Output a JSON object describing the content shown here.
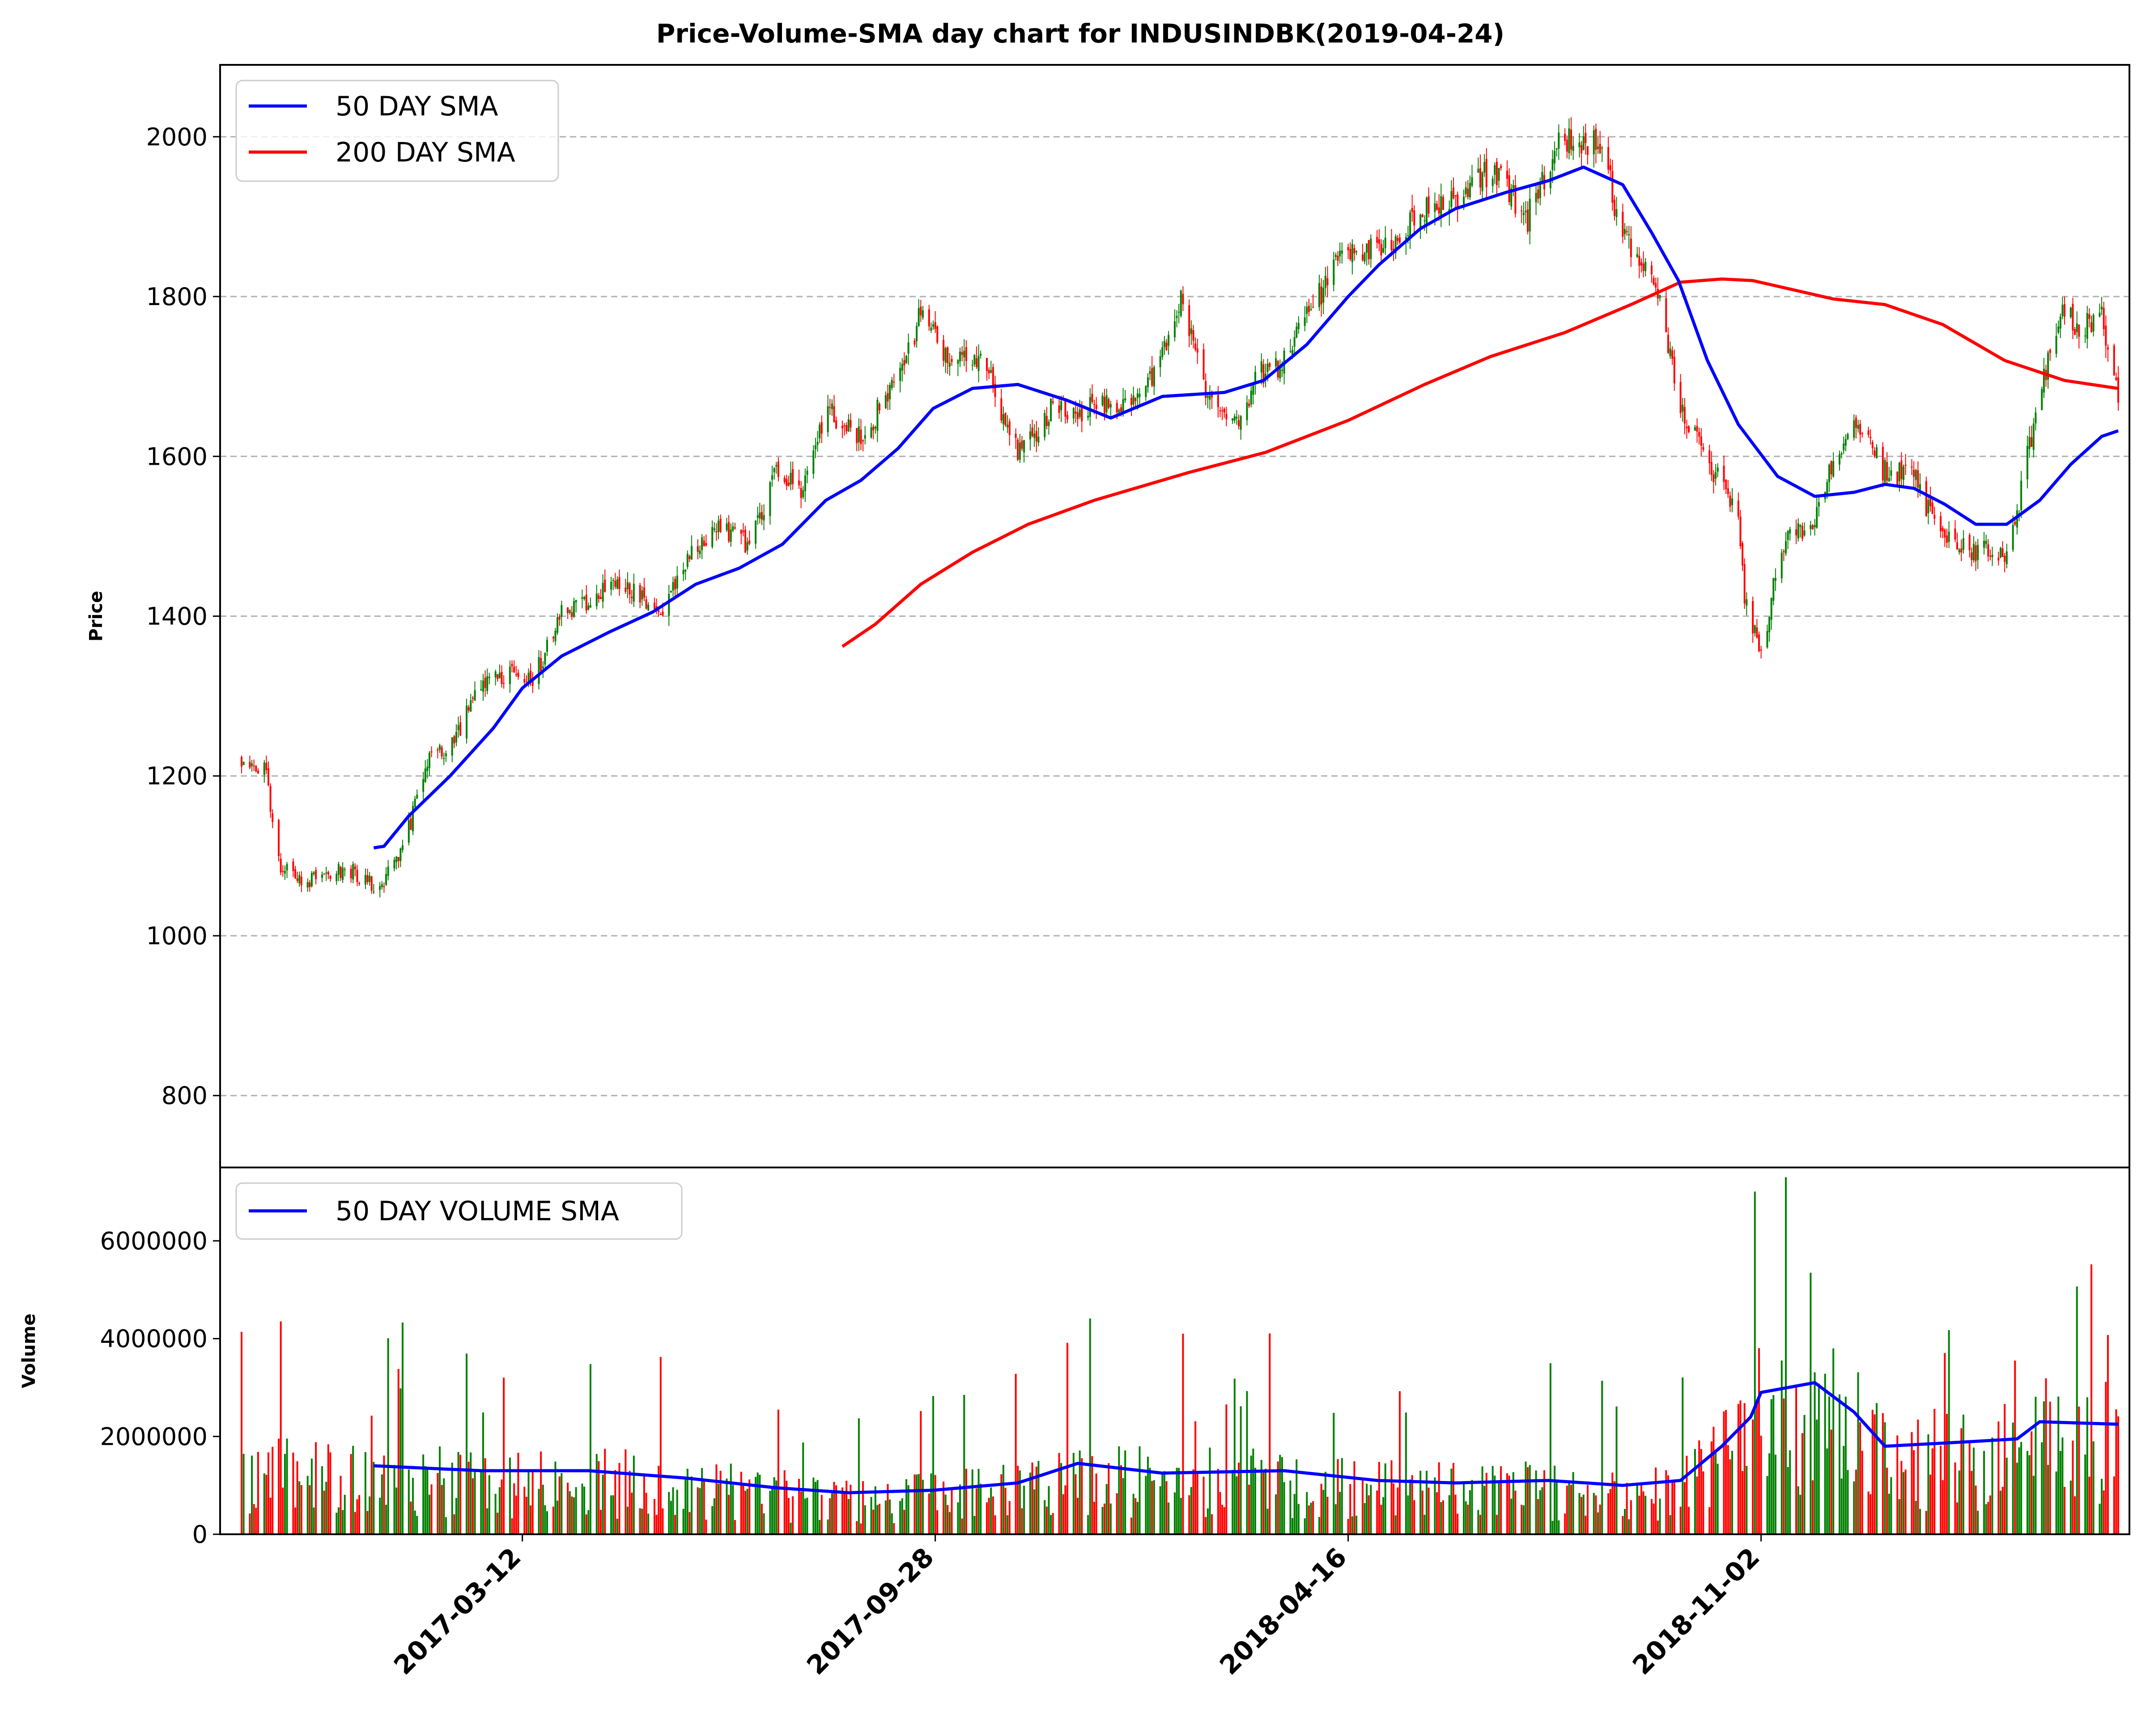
{
  "chart_data": {
    "type": "candlestick",
    "title": "Price-Volume-SMA day chart for INDUSINDBK(2019-04-24)",
    "colors": {
      "up": "#008000",
      "down": "#ff0000",
      "sma50": "#0000ff",
      "sma200": "#ff0000",
      "grid": "#b0b0b0"
    },
    "x_range": [
      "2016-10-27",
      "2019-04-24"
    ],
    "x_ticks": [
      "2017-03-12",
      "2017-09-28",
      "2018-04-16",
      "2018-11-02"
    ],
    "price_panel": {
      "ylabel": "Price",
      "ylim": [
        710,
        2090
      ],
      "yticks": [
        800,
        1000,
        1200,
        1400,
        1600,
        1800,
        2000
      ],
      "grid": true,
      "legend": {
        "placement": "top-left",
        "entries": [
          "50 DAY SMA",
          "200 DAY SMA"
        ]
      },
      "close_anchors": [
        [
          "2016-10-27",
          1222
        ],
        [
          "2016-11-08",
          1205
        ],
        [
          "2016-11-14",
          1090
        ],
        [
          "2016-11-25",
          1065
        ],
        [
          "2016-12-16",
          1085
        ],
        [
          "2017-01-02",
          1060
        ],
        [
          "2017-01-13",
          1105
        ],
        [
          "2017-01-25",
          1220
        ],
        [
          "2017-02-06",
          1240
        ],
        [
          "2017-02-20",
          1320
        ],
        [
          "2017-03-06",
          1330
        ],
        [
          "2017-03-17",
          1320
        ],
        [
          "2017-03-31",
          1400
        ],
        [
          "2017-04-13",
          1420
        ],
        [
          "2017-05-01",
          1440
        ],
        [
          "2017-05-18",
          1400
        ],
        [
          "2017-06-01",
          1480
        ],
        [
          "2017-06-13",
          1510
        ],
        [
          "2017-07-01",
          1490
        ],
        [
          "2017-07-13",
          1580
        ],
        [
          "2017-07-25",
          1560
        ],
        [
          "2017-08-07",
          1660
        ],
        [
          "2017-08-23",
          1620
        ],
        [
          "2017-09-10",
          1700
        ],
        [
          "2017-09-23",
          1790
        ],
        [
          "2017-10-03",
          1720
        ],
        [
          "2017-10-16",
          1730
        ],
        [
          "2017-10-26",
          1690
        ],
        [
          "2017-11-07",
          1600
        ],
        [
          "2017-11-24",
          1660
        ],
        [
          "2017-12-15",
          1660
        ],
        [
          "2018-01-03",
          1660
        ],
        [
          "2018-01-16",
          1720
        ],
        [
          "2018-01-26",
          1800
        ],
        [
          "2018-02-08",
          1660
        ],
        [
          "2018-02-20",
          1640
        ],
        [
          "2018-03-03",
          1700
        ],
        [
          "2018-03-16",
          1720
        ],
        [
          "2018-03-29",
          1780
        ],
        [
          "2018-04-12",
          1850
        ],
        [
          "2018-04-30",
          1860
        ],
        [
          "2018-05-20",
          1900
        ],
        [
          "2018-06-04",
          1920
        ],
        [
          "2018-06-24",
          1960
        ],
        [
          "2018-07-12",
          1900
        ],
        [
          "2018-07-27",
          1990
        ],
        [
          "2018-08-05",
          2000
        ],
        [
          "2018-08-17",
          1990
        ],
        [
          "2018-08-27",
          1870
        ],
        [
          "2018-09-10",
          1840
        ],
        [
          "2018-09-24",
          1660
        ],
        [
          "2018-10-05",
          1600
        ],
        [
          "2018-10-21",
          1540
        ],
        [
          "2018-10-25",
          1420
        ],
        [
          "2018-11-02",
          1350
        ],
        [
          "2018-11-12",
          1490
        ],
        [
          "2018-11-27",
          1520
        ],
        [
          "2018-12-07",
          1600
        ],
        [
          "2018-12-19",
          1640
        ],
        [
          "2019-01-01",
          1580
        ],
        [
          "2019-01-14",
          1580
        ],
        [
          "2019-01-28",
          1500
        ],
        [
          "2019-02-15",
          1480
        ],
        [
          "2019-02-28",
          1480
        ],
        [
          "2019-03-06",
          1530
        ],
        [
          "2019-03-17",
          1680
        ],
        [
          "2019-03-27",
          1780
        ],
        [
          "2019-04-08",
          1760
        ],
        [
          "2019-04-16",
          1780
        ],
        [
          "2019-04-24",
          1670
        ]
      ],
      "sma50": [
        [
          "2016-12-30",
          1110
        ],
        [
          "2017-01-04",
          1112
        ],
        [
          "2017-01-16",
          1150
        ],
        [
          "2017-02-05",
          1200
        ],
        [
          "2017-02-26",
          1260
        ],
        [
          "2017-03-12",
          1310
        ],
        [
          "2017-03-31",
          1350
        ],
        [
          "2017-04-23",
          1380
        ],
        [
          "2017-05-14",
          1405
        ],
        [
          "2017-06-04",
          1440
        ],
        [
          "2017-06-25",
          1460
        ],
        [
          "2017-07-16",
          1490
        ],
        [
          "2017-08-06",
          1545
        ],
        [
          "2017-08-23",
          1570
        ],
        [
          "2017-09-10",
          1610
        ],
        [
          "2017-09-27",
          1660
        ],
        [
          "2017-10-16",
          1685
        ],
        [
          "2017-11-07",
          1690
        ],
        [
          "2017-12-01",
          1670
        ],
        [
          "2017-12-22",
          1648
        ],
        [
          "2018-01-16",
          1675
        ],
        [
          "2018-02-15",
          1680
        ],
        [
          "2018-03-06",
          1695
        ],
        [
          "2018-03-27",
          1740
        ],
        [
          "2018-04-16",
          1800
        ],
        [
          "2018-05-01",
          1840
        ],
        [
          "2018-05-21",
          1885
        ],
        [
          "2018-06-07",
          1910
        ],
        [
          "2018-07-01",
          1930
        ],
        [
          "2018-07-22",
          1945
        ],
        [
          "2018-08-08",
          1962
        ],
        [
          "2018-08-27",
          1940
        ],
        [
          "2018-09-10",
          1880
        ],
        [
          "2018-09-23",
          1820
        ],
        [
          "2018-10-07",
          1720
        ],
        [
          "2018-10-22",
          1640
        ],
        [
          "2018-11-10",
          1575
        ],
        [
          "2018-11-28",
          1550
        ],
        [
          "2018-12-17",
          1555
        ],
        [
          "2019-01-01",
          1565
        ],
        [
          "2019-01-15",
          1560
        ],
        [
          "2019-01-30",
          1540
        ],
        [
          "2019-02-14",
          1515
        ],
        [
          "2019-03-01",
          1515
        ],
        [
          "2019-03-17",
          1545
        ],
        [
          "2019-04-01",
          1590
        ],
        [
          "2019-04-16",
          1625
        ],
        [
          "2019-04-24",
          1632
        ]
      ],
      "sma200": [
        [
          "2017-08-14",
          1362
        ],
        [
          "2017-08-30",
          1390
        ],
        [
          "2017-09-21",
          1440
        ],
        [
          "2017-10-16",
          1480
        ],
        [
          "2017-11-12",
          1515
        ],
        [
          "2017-12-14",
          1545
        ],
        [
          "2018-01-29",
          1580
        ],
        [
          "2018-03-07",
          1605
        ],
        [
          "2018-04-16",
          1645
        ],
        [
          "2018-05-23",
          1690
        ],
        [
          "2018-06-24",
          1725
        ],
        [
          "2018-07-30",
          1755
        ],
        [
          "2018-08-31",
          1790
        ],
        [
          "2018-09-24",
          1818
        ],
        [
          "2018-10-14",
          1822
        ],
        [
          "2018-10-29",
          1820
        ],
        [
          "2018-12-07",
          1797
        ],
        [
          "2019-01-01",
          1790
        ],
        [
          "2019-01-29",
          1765
        ],
        [
          "2019-02-28",
          1720
        ],
        [
          "2019-03-29",
          1695
        ],
        [
          "2019-04-24",
          1685
        ]
      ]
    },
    "volume_panel": {
      "ylabel": "Volume",
      "ylim": [
        0,
        7500000
      ],
      "yticks": [
        0,
        2000000,
        4000000,
        6000000
      ],
      "legend": {
        "placement": "top-left",
        "entries": [
          "50 DAY VOLUME SMA"
        ]
      },
      "volume_sma50": [
        [
          "2016-12-30",
          1400000
        ],
        [
          "2017-02-20",
          1300000
        ],
        [
          "2017-04-13",
          1300000
        ],
        [
          "2017-05-30",
          1150000
        ],
        [
          "2017-07-13",
          950000
        ],
        [
          "2017-08-17",
          850000
        ],
        [
          "2017-09-27",
          900000
        ],
        [
          "2017-11-07",
          1050000
        ],
        [
          "2017-12-06",
          1450000
        ],
        [
          "2018-01-16",
          1250000
        ],
        [
          "2018-03-16",
          1300000
        ],
        [
          "2018-04-30",
          1100000
        ],
        [
          "2018-06-07",
          1050000
        ],
        [
          "2018-07-22",
          1100000
        ],
        [
          "2018-08-27",
          1000000
        ],
        [
          "2018-09-24",
          1100000
        ],
        [
          "2018-10-14",
          1800000
        ],
        [
          "2018-10-28",
          2400000
        ],
        [
          "2018-11-02",
          2900000
        ],
        [
          "2018-11-28",
          3100000
        ],
        [
          "2018-12-17",
          2500000
        ],
        [
          "2019-01-01",
          1800000
        ],
        [
          "2019-02-14",
          1900000
        ],
        [
          "2019-03-06",
          1950000
        ],
        [
          "2019-03-17",
          2300000
        ],
        [
          "2019-04-24",
          2250000
        ]
      ]
    }
  }
}
